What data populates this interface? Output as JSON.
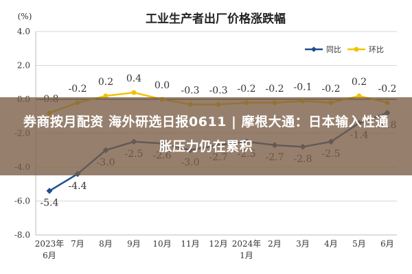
{
  "chart_data": {
    "type": "line",
    "title": "工业生产者出厂价格涨跌幅",
    "ylabel": "(%)",
    "xlabel": "",
    "ylim": [
      -8.0,
      4.0
    ],
    "yticks": [
      "4.0",
      "2.0",
      "0.0",
      "-2.0",
      "-4.0",
      "-6.0",
      "-8.0"
    ],
    "ytick_values": [
      4,
      2,
      0,
      -2,
      -4,
      -6,
      -8
    ],
    "categories": [
      "2023年 6月",
      "7月",
      "8月",
      "9月",
      "10月",
      "11月",
      "12月",
      "2024年 1月",
      "2月",
      "3月",
      "4月",
      "5月",
      "6月"
    ],
    "grid": true,
    "legend_position": "top-right",
    "series": [
      {
        "name": "同比",
        "color": "#1f4e8c",
        "values": [
          -5.4,
          -4.4,
          -3.0,
          -2.5,
          -2.6,
          -3.0,
          -2.7,
          -2.5,
          -2.7,
          -2.8,
          -2.5,
          -1.4,
          -0.8
        ],
        "labels": [
          "-5.4",
          "-4.4",
          "-3.0",
          "-2.5",
          "-2.6",
          "-3.0",
          "-2.7",
          "-2.5",
          "-2.7",
          "-2.8",
          "-2.5",
          "-1.4",
          "-0.8"
        ]
      },
      {
        "name": "环比",
        "color": "#f2c200",
        "values": [
          -0.8,
          -0.2,
          0.2,
          0.4,
          0.0,
          -0.3,
          -0.3,
          -0.2,
          -0.2,
          -0.1,
          -0.2,
          0.2,
          -0.2
        ],
        "labels": [
          "-0.8",
          "-0.2",
          "0.2",
          "0.4",
          "0.0",
          "-0.3",
          "-0.3",
          "-0.2",
          "-0.2",
          "-0.1",
          "-0.2",
          "0.2",
          "-0.2"
        ]
      }
    ]
  },
  "banner": {
    "text": "券商按月配资 海外研选日报0611 | 摩根大通：日本输入性通胀压力仍在累积"
  }
}
